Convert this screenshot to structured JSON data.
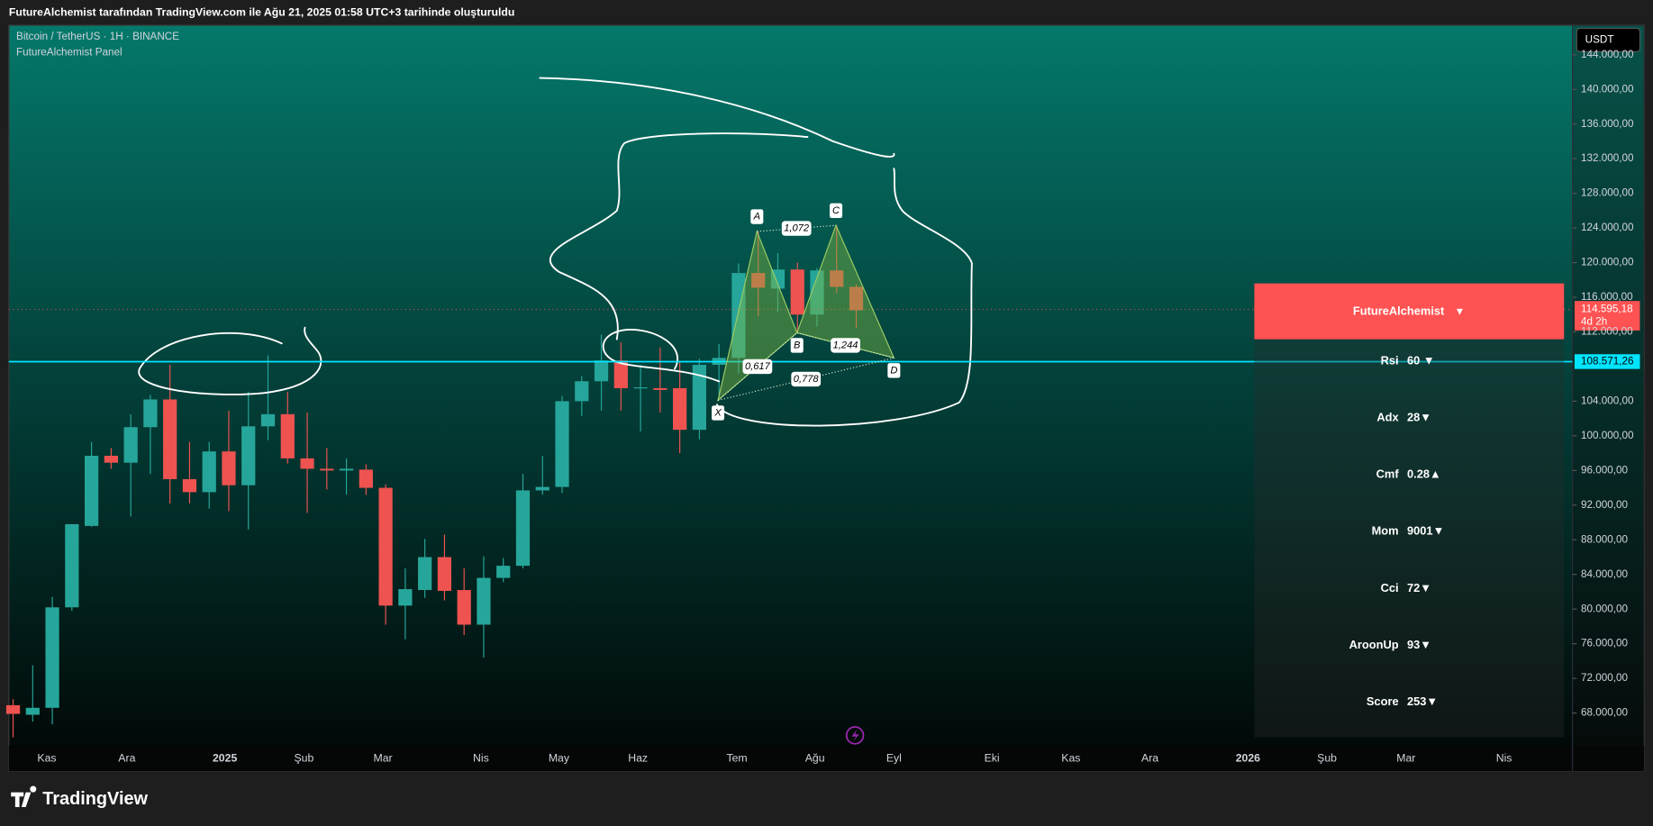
{
  "header": {
    "caption": "FutureAlchemist tarafından TradingView.com ile Ağu 21, 2025 01:58 UTC+3 tarihinde oluşturuldu"
  },
  "chart_data": {
    "type": "candlestick",
    "title": "Bitcoin / TetherUS · 1H · BINANCE",
    "subtitle": "FutureAlchemist Panel",
    "currency": "USDT",
    "open": [
      68900,
      67800,
      68600,
      80200,
      89600,
      97700,
      96900,
      101000,
      104200,
      95000,
      93500,
      98200,
      94300,
      101100,
      102500,
      97400,
      96200,
      96000,
      96100,
      94000,
      80400,
      82200,
      86000,
      82200,
      78200,
      83600,
      85000,
      93700,
      94100,
      104000,
      106300,
      108700,
      105500,
      105500,
      105500,
      100700,
      108200,
      109000,
      118800,
      117000,
      119200,
      114000,
      119100,
      117200
    ],
    "high": [
      69600,
      73500,
      81400,
      89800,
      99300,
      98600,
      102500,
      104700,
      108200,
      99300,
      99300,
      102900,
      105100,
      109300,
      105100,
      102700,
      98600,
      97400,
      96700,
      94400,
      84700,
      88100,
      88600,
      84700,
      86100,
      85900,
      95600,
      97700,
      104600,
      106900,
      111700,
      110800,
      108200,
      110200,
      108600,
      108900,
      110600,
      119900,
      123600,
      121100,
      120000,
      119400,
      124300,
      117500
    ],
    "low": [
      65200,
      67000,
      66700,
      79800,
      89500,
      96200,
      90700,
      95600,
      92200,
      92200,
      91600,
      91300,
      89200,
      99500,
      96800,
      91100,
      93800,
      93200,
      93200,
      78200,
      76500,
      81300,
      81000,
      77000,
      74400,
      83100,
      84700,
      93200,
      93400,
      102300,
      102900,
      102900,
      100500,
      102700,
      98000,
      99600,
      104100,
      107200,
      113800,
      114300,
      111900,
      112600,
      116500,
      112400
    ],
    "close": [
      67900,
      68600,
      80200,
      89800,
      97700,
      96900,
      101000,
      104200,
      95000,
      93500,
      98200,
      94300,
      101100,
      102500,
      97400,
      96200,
      96000,
      96200,
      94000,
      80400,
      82300,
      86000,
      82100,
      78200,
      83600,
      85000,
      93700,
      94100,
      104000,
      106300,
      108700,
      105500,
      105600,
      105300,
      100700,
      108200,
      109000,
      118800,
      117100,
      119200,
      114000,
      119100,
      117200,
      114500
    ],
    "up_color": "#26a69a",
    "down_color": "#ef5350",
    "ylim": [
      64200,
      147400
    ],
    "yticks": [
      {
        "value": 68000,
        "label": "68.000,00"
      },
      {
        "value": 72000,
        "label": "72.000,00"
      },
      {
        "value": 76000,
        "label": "76.000,00"
      },
      {
        "value": 80000,
        "label": "80.000,00"
      },
      {
        "value": 84000,
        "label": "84.000,00"
      },
      {
        "value": 88000,
        "label": "88.000,00"
      },
      {
        "value": 92000,
        "label": "92.000,00"
      },
      {
        "value": 96000,
        "label": "96.000,00"
      },
      {
        "value": 100000,
        "label": "100.000,00"
      },
      {
        "value": 104000,
        "label": "104.000,00"
      },
      {
        "value": 112000,
        "label": "112.000,00"
      },
      {
        "value": 116000,
        "label": "116.000,00"
      },
      {
        "value": 120000,
        "label": "120.000,00"
      },
      {
        "value": 124000,
        "label": "124.000,00"
      },
      {
        "value": 128000,
        "label": "128.000,00"
      },
      {
        "value": 132000,
        "label": "132.000,00"
      },
      {
        "value": 136000,
        "label": "136.000,00"
      },
      {
        "value": 140000,
        "label": "140.000,00"
      },
      {
        "value": 144000,
        "label": "144.000,00"
      }
    ],
    "x_labels": [
      "Kas",
      "Ara",
      "2025",
      "Şub",
      "Mar",
      "Nis",
      "May",
      "Haz",
      "Tem",
      "Ağu",
      "Eyl",
      "Eki",
      "Kas",
      "Ara",
      "2026",
      "Şub",
      "Mar",
      "Nis"
    ],
    "last_price": {
      "value": 114595.18,
      "label": "114.595,18",
      "countdown": "4d 2h",
      "color": "#ff5252"
    },
    "level_line": {
      "value": 108571.26,
      "label": "108.571,26",
      "color": "#00e5ff"
    },
    "pattern": {
      "points": [
        {
          "label": "X",
          "value": 104100
        },
        {
          "label": "A",
          "value": 123600
        },
        {
          "label": "B",
          "value": 111900
        },
        {
          "label": "C",
          "value": 124300
        },
        {
          "label": "D",
          "value": 109000
        }
      ],
      "ratios": [
        "0,617",
        "1,072",
        "1,244",
        "0,778"
      ]
    }
  },
  "panel": {
    "title": "FutureAlchemist",
    "arrow": "▼",
    "rows": [
      {
        "label": "Rsi",
        "value": "60 ▼"
      },
      {
        "label": "Adx",
        "value": "28▼"
      },
      {
        "label": "Cmf",
        "value": "0.28▲"
      },
      {
        "label": "Mom",
        "value": "9001▼"
      },
      {
        "label": "Cci",
        "value": "72▼"
      },
      {
        "label": "AroonUp",
        "value": "93▼"
      },
      {
        "label": "Score",
        "value": "253▼"
      }
    ]
  },
  "footer": {
    "brand": "TradingView"
  }
}
